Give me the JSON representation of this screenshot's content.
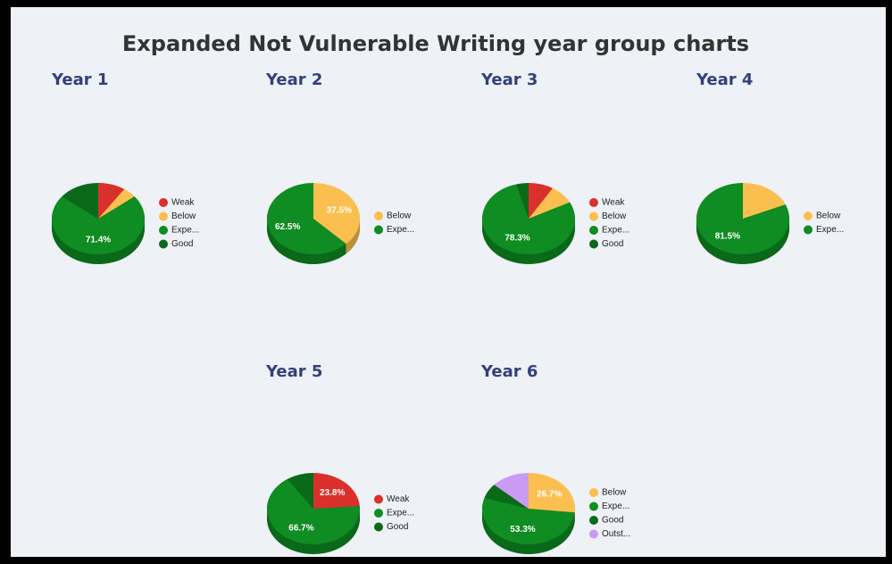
{
  "title": "Expanded Not Vulnerable Writing year group charts",
  "chart_data": [
    {
      "type": "pie",
      "title": "Year 1",
      "categories": [
        "Weak",
        "Below",
        "Expe...",
        "Good"
      ],
      "values": [
        9.5,
        4.8,
        71.4,
        14.3
      ],
      "value_labels": [
        null,
        null,
        "71.4%",
        null
      ],
      "colors": [
        "#d9302c",
        "#fbbf4f",
        "#0f8c22",
        "#0b6a1a"
      ]
    },
    {
      "type": "pie",
      "title": "Year 2",
      "categories": [
        "Below",
        "Expe..."
      ],
      "values": [
        37.5,
        62.5
      ],
      "value_labels": [
        "37.5%",
        "62.5%"
      ],
      "colors": [
        "#fbbf4f",
        "#0f8c22"
      ]
    },
    {
      "type": "pie",
      "title": "Year 3",
      "categories": [
        "Weak",
        "Below",
        "Expe...",
        "Good"
      ],
      "values": [
        8.7,
        8.7,
        78.3,
        4.3
      ],
      "value_labels": [
        null,
        null,
        "78.3%",
        null
      ],
      "colors": [
        "#d9302c",
        "#fbbf4f",
        "#0f8c22",
        "#0b6a1a"
      ]
    },
    {
      "type": "pie",
      "title": "Year 4",
      "categories": [
        "Below",
        "Expe..."
      ],
      "values": [
        18.5,
        81.5
      ],
      "value_labels": [
        null,
        "81.5%"
      ],
      "colors": [
        "#fbbf4f",
        "#0f8c22"
      ]
    },
    {
      "type": "pie",
      "title": "Year 5",
      "categories": [
        "Weak",
        "Expe...",
        "Good"
      ],
      "values": [
        23.8,
        66.7,
        9.5
      ],
      "value_labels": [
        "23.8%",
        "66.7%",
        null
      ],
      "colors": [
        "#d9302c",
        "#0f8c22",
        "#0b6a1a"
      ]
    },
    {
      "type": "pie",
      "title": "Year 6",
      "categories": [
        "Below",
        "Expe...",
        "Good",
        "Outst..."
      ],
      "values": [
        26.7,
        53.3,
        6.7,
        13.3
      ],
      "value_labels": [
        "26.7%",
        "53.3%",
        null,
        null
      ],
      "colors": [
        "#fbbf4f",
        "#0f8c22",
        "#0b6a1a",
        "#c99cf2"
      ]
    }
  ]
}
